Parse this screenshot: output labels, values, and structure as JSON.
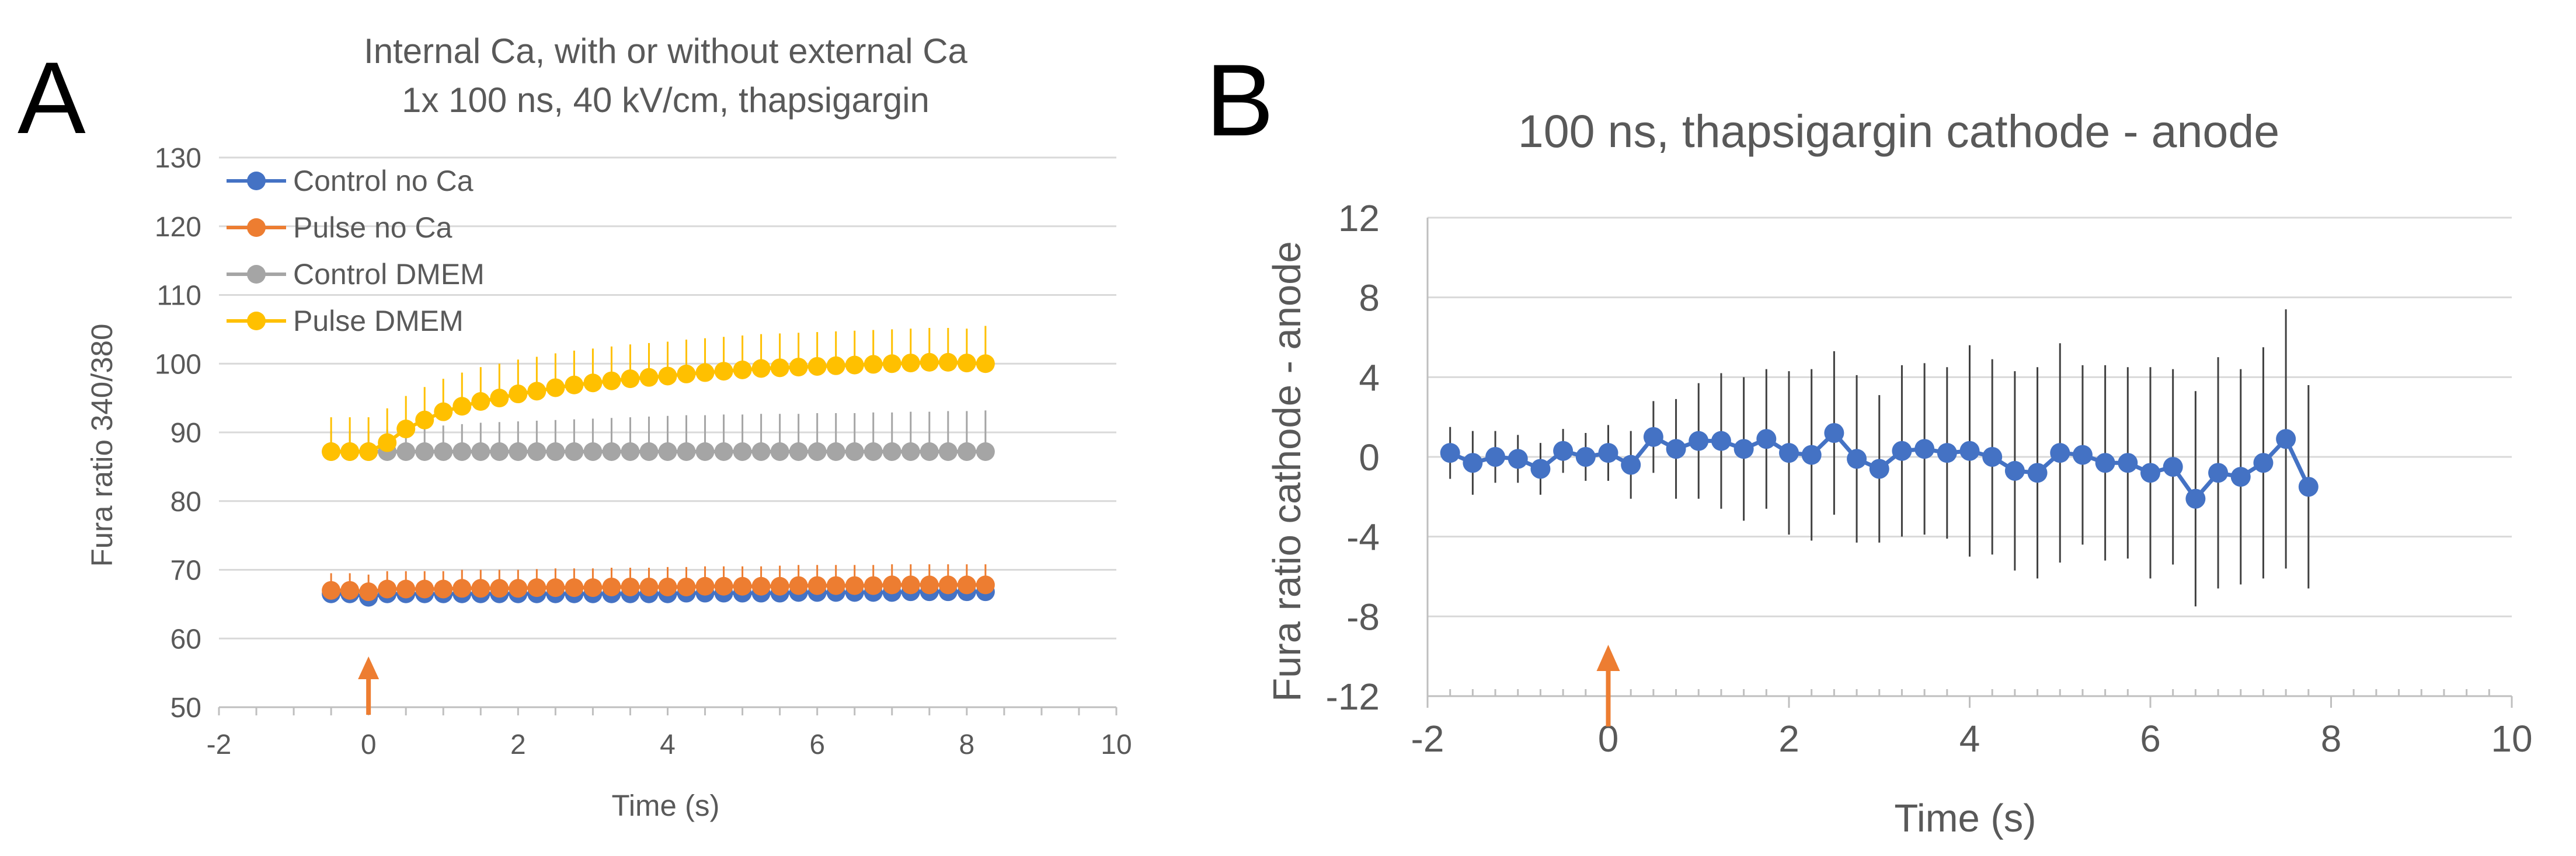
{
  "panels": {
    "a": {
      "letter": "A"
    },
    "b": {
      "letter": "B"
    }
  },
  "colors": {
    "control_no_ca": "#4472C4",
    "pulse_no_ca": "#ED7D31",
    "control_dmem": "#A5A5A5",
    "pulse_dmem": "#FFC000",
    "cathode_anode": "#4472C4",
    "arrow": "#ED7D31",
    "gridline": "#D9D9D9",
    "text": "#595959"
  },
  "chart_data": [
    {
      "type": "line",
      "title": [
        "Internal Ca, with or without external Ca",
        "1x 100 ns, 40 kV/cm, thapsigargin"
      ],
      "xlabel": "Time (s)",
      "ylabel": "Fura ratio 340/380",
      "xlim": [
        -2,
        10
      ],
      "ylim": [
        50,
        130
      ],
      "xticks": [
        -2,
        0,
        2,
        4,
        6,
        8,
        10
      ],
      "yticks": [
        50,
        60,
        70,
        80,
        90,
        100,
        110,
        120,
        130
      ],
      "grid": "horizontal",
      "legend": "top-left",
      "stimulus_arrow_x": 0,
      "series": [
        {
          "name": "Control no Ca",
          "x": [
            -0.5,
            -0.25,
            0,
            0.25,
            0.5,
            0.75,
            1,
            1.25,
            1.5,
            1.75,
            2,
            2.25,
            2.5,
            2.75,
            3,
            3.25,
            3.5,
            3.75,
            4,
            4.25,
            4.5,
            4.75,
            5,
            5.25,
            5.5,
            5.75,
            6,
            6.25,
            6.5,
            6.75,
            7,
            7.25,
            7.5,
            7.75,
            8,
            8.25
          ],
          "y": [
            66.5,
            66.5,
            66,
            66.5,
            66.5,
            66.5,
            66.5,
            66.5,
            66.5,
            66.5,
            66.5,
            66.5,
            66.5,
            66.5,
            66.5,
            66.5,
            66.5,
            66.5,
            66.5,
            66.6,
            66.6,
            66.6,
            66.6,
            66.6,
            66.6,
            66.7,
            66.7,
            66.7,
            66.7,
            66.7,
            66.7,
            66.8,
            66.8,
            66.8,
            66.8,
            66.8
          ],
          "error": [
            1,
            1,
            1,
            1,
            1,
            1,
            1,
            1,
            1,
            1,
            1,
            1,
            1,
            1,
            1,
            1,
            1,
            1,
            1,
            1,
            1,
            1,
            1,
            1,
            1,
            1,
            1,
            1,
            1,
            1,
            1,
            1,
            1,
            1,
            1,
            1
          ]
        },
        {
          "name": "Pulse no Ca",
          "x": [
            -0.5,
            -0.25,
            0,
            0.25,
            0.5,
            0.75,
            1,
            1.25,
            1.5,
            1.75,
            2,
            2.25,
            2.5,
            2.75,
            3,
            3.25,
            3.5,
            3.75,
            4,
            4.25,
            4.5,
            4.75,
            5,
            5.25,
            5.5,
            5.75,
            6,
            6.25,
            6.5,
            6.75,
            7,
            7.25,
            7.5,
            7.75,
            8,
            8.25
          ],
          "y": [
            67,
            67,
            66.8,
            67.2,
            67.2,
            67.2,
            67.2,
            67.3,
            67.3,
            67.3,
            67.3,
            67.4,
            67.4,
            67.4,
            67.4,
            67.5,
            67.5,
            67.5,
            67.5,
            67.5,
            67.6,
            67.6,
            67.6,
            67.6,
            67.6,
            67.7,
            67.7,
            67.7,
            67.7,
            67.7,
            67.8,
            67.8,
            67.8,
            67.8,
            67.8,
            67.8
          ],
          "error": [
            2.5,
            2.5,
            2.5,
            2.6,
            2.6,
            2.6,
            2.6,
            2.7,
            2.7,
            2.7,
            2.7,
            2.7,
            2.8,
            2.8,
            2.8,
            2.8,
            2.8,
            2.8,
            2.9,
            2.9,
            2.9,
            2.9,
            2.9,
            2.9,
            3,
            3,
            3,
            3,
            3,
            3,
            3,
            3,
            3,
            3,
            3,
            3
          ]
        },
        {
          "name": "Control DMEM",
          "x": [
            -0.5,
            -0.25,
            0,
            0.25,
            0.5,
            0.75,
            1,
            1.25,
            1.5,
            1.75,
            2,
            2.25,
            2.5,
            2.75,
            3,
            3.25,
            3.5,
            3.75,
            4,
            4.25,
            4.5,
            4.75,
            5,
            5.25,
            5.5,
            5.75,
            6,
            6.25,
            6.5,
            6.75,
            7,
            7.25,
            7.5,
            7.75,
            8,
            8.25
          ],
          "y": [
            87.2,
            87.2,
            87.2,
            87.2,
            87.2,
            87.2,
            87.2,
            87.2,
            87.2,
            87.2,
            87.2,
            87.2,
            87.2,
            87.2,
            87.2,
            87.2,
            87.2,
            87.2,
            87.2,
            87.2,
            87.2,
            87.2,
            87.2,
            87.2,
            87.2,
            87.2,
            87.2,
            87.2,
            87.2,
            87.2,
            87.2,
            87.2,
            87.2,
            87.2,
            87.2,
            87.2
          ],
          "error": [
            3,
            3,
            3,
            3.2,
            3.4,
            3.6,
            3.8,
            4,
            4.2,
            4.3,
            4.4,
            4.5,
            4.6,
            4.7,
            4.8,
            4.9,
            5,
            5.1,
            5.2,
            5.3,
            5.3,
            5.4,
            5.4,
            5.5,
            5.5,
            5.5,
            5.6,
            5.6,
            5.6,
            5.7,
            5.7,
            5.8,
            5.8,
            5.9,
            5.9,
            6
          ]
        },
        {
          "name": "Pulse DMEM",
          "x": [
            -0.5,
            -0.25,
            0,
            0.25,
            0.5,
            0.75,
            1,
            1.25,
            1.5,
            1.75,
            2,
            2.25,
            2.5,
            2.75,
            3,
            3.25,
            3.5,
            3.75,
            4,
            4.25,
            4.5,
            4.75,
            5,
            5.25,
            5.5,
            5.75,
            6,
            6.25,
            6.5,
            6.75,
            7,
            7.25,
            7.5,
            7.75,
            8,
            8.25
          ],
          "y": [
            87.2,
            87.2,
            87.2,
            88.5,
            90.5,
            91.8,
            93,
            93.8,
            94.5,
            95,
            95.6,
            96,
            96.5,
            96.9,
            97.2,
            97.5,
            97.8,
            98,
            98.2,
            98.5,
            98.7,
            98.9,
            99.1,
            99.3,
            99.4,
            99.5,
            99.6,
            99.7,
            99.8,
            99.9,
            100,
            100.1,
            100.2,
            100.2,
            100.1,
            100
          ],
          "error": [
            5,
            5,
            5,
            5,
            4.8,
            4.8,
            4.8,
            4.9,
            5,
            5,
            5,
            5,
            5,
            5,
            5,
            5,
            5,
            5,
            5,
            5,
            5,
            5,
            5,
            5,
            5,
            5,
            5,
            5,
            5,
            5,
            5,
            5,
            5,
            5,
            5,
            5.5
          ]
        }
      ]
    },
    {
      "type": "line",
      "title": "100 ns, thapsigargin cathode - anode",
      "xlabel": "Time (s)",
      "ylabel": "Fura ratio cathode - anode",
      "xlim": [
        -2,
        10
      ],
      "ylim": [
        -12,
        12
      ],
      "xticks": [
        -2,
        0,
        2,
        4,
        6,
        8,
        10
      ],
      "yticks": [
        -12,
        -8,
        -4,
        0,
        4,
        8,
        12
      ],
      "grid": "horizontal",
      "stimulus_arrow_x": 0,
      "series": [
        {
          "x": [
            -1.75,
            -1.5,
            -1.25,
            -1,
            -0.75,
            -0.5,
            -0.25,
            0,
            0.25,
            0.5,
            0.75,
            1,
            1.25,
            1.5,
            1.75,
            2,
            2.25,
            2.5,
            2.75,
            3,
            3.25,
            3.5,
            3.75,
            4,
            4.25,
            4.5,
            4.75,
            5,
            5.25,
            5.5,
            5.75,
            6,
            6.25,
            6.5,
            6.75,
            7,
            7.25,
            7.5,
            7.75
          ],
          "y": [
            0.2,
            -0.3,
            0,
            -0.1,
            -0.6,
            0.3,
            0,
            0.2,
            -0.4,
            1,
            0.4,
            0.8,
            0.8,
            0.4,
            0.9,
            0.2,
            0.1,
            1.2,
            -0.1,
            -0.6,
            0.3,
            0.4,
            0.2,
            0.3,
            0,
            -0.7,
            -0.8,
            0.2,
            0.1,
            -0.3,
            -0.3,
            -0.8,
            -0.5,
            -2.1,
            -0.8,
            -1,
            -0.3,
            0.9,
            -1.5
          ],
          "error": [
            1.3,
            1.6,
            1.3,
            1.2,
            1.3,
            1.1,
            1.2,
            1.4,
            1.7,
            1.8,
            2.5,
            2.9,
            3.4,
            3.6,
            3.5,
            4.1,
            4.3,
            4.1,
            4.2,
            3.7,
            4.3,
            4.3,
            4.3,
            5.3,
            4.9,
            5,
            5.3,
            5.5,
            4.5,
            4.9,
            4.8,
            5.3,
            4.9,
            5.4,
            5.8,
            5.4,
            5.8,
            6.5,
            5.1
          ]
        }
      ]
    }
  ]
}
